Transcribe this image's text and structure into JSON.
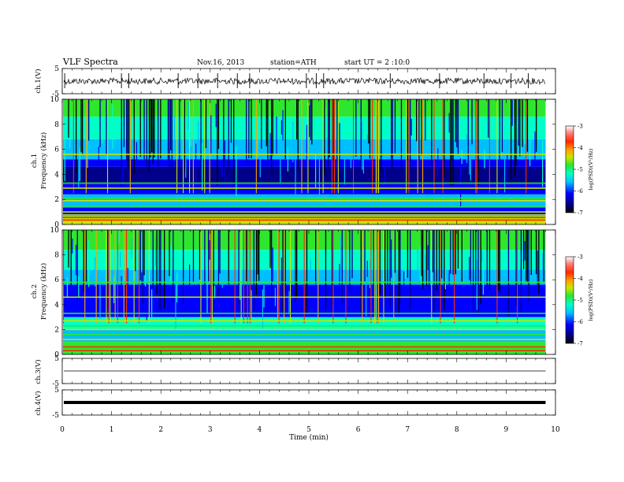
{
  "header": {
    "title": "VLF  Spectra",
    "date": "Nov.16, 2013",
    "station": "station=ATH",
    "start": "start  UT  =   2  :10:0"
  },
  "colors": {
    "colormap": [
      "#000000",
      "#00008b",
      "#0000ff",
      "#00bfff",
      "#00ffc8",
      "#2ee62e",
      "#c8e600",
      "#ffa500",
      "#ff2a00",
      "#ff7f7f",
      "#ffffff"
    ],
    "trace": "#000000",
    "axis": "#000000"
  },
  "chart_data": [
    {
      "type": "line",
      "name": "ch1-waveform",
      "ylabel": "ch.1(V)",
      "ylim": [
        -5,
        5
      ],
      "yticks": [
        "5",
        "-5"
      ],
      "xlim": [
        0,
        10
      ],
      "description_level_V": 0,
      "spike_times_min": [
        0.05,
        1.2,
        1.35,
        2.35,
        2.75,
        3.15,
        3.55,
        3.8,
        4.95,
        5.15,
        5.3,
        6.65,
        7.65,
        8.55,
        9.1,
        9.45
      ]
    },
    {
      "type": "heatmap",
      "name": "ch1-spectrogram",
      "ylabel": "Frequency (kHz)",
      "ylabel_channel": "ch.1",
      "ylim": [
        0,
        10
      ],
      "yticks": [
        "0",
        "2",
        "4",
        "6",
        "8",
        "10"
      ],
      "xlim": [
        0,
        10
      ],
      "data_end_min": 9.8,
      "colorbar": {
        "label": "log(PSD)(V²/Hz)",
        "range": [
          -7,
          -3
        ],
        "ticks": [
          "-7",
          "-6",
          "-5",
          "-4",
          "-3"
        ]
      }
    },
    {
      "type": "heatmap",
      "name": "ch2-spectrogram",
      "ylabel": "Frequency (kHz)",
      "ylabel_channel": "ch.2",
      "ylim": [
        0,
        10
      ],
      "yticks": [
        "0",
        "2",
        "4",
        "6",
        "8",
        "10"
      ],
      "xlim": [
        0,
        10
      ],
      "data_end_min": 9.8,
      "colorbar": {
        "label": "log(PSD)(V²/Hz)",
        "range": [
          -7,
          -3
        ],
        "ticks": [
          "-7",
          "-6",
          "-5",
          "-4",
          "-3"
        ]
      }
    },
    {
      "type": "line",
      "name": "ch3-waveform",
      "ylabel": "ch.3(V)",
      "ylim": [
        -5,
        5
      ],
      "yticks": [
        "5",
        "-5"
      ],
      "xlim": [
        0,
        10
      ],
      "level_V": 0
    },
    {
      "type": "line",
      "name": "ch4-waveform",
      "ylabel": "ch.4(V)",
      "ylim": [
        -5,
        5
      ],
      "yticks": [
        "5",
        "-5"
      ],
      "xlim": [
        0,
        10
      ],
      "level_V": 0
    }
  ],
  "xaxis": {
    "label": "Time  (min)",
    "ticks": [
      "0",
      "1",
      "2",
      "3",
      "4",
      "5",
      "6",
      "7",
      "8",
      "9",
      "10"
    ],
    "range": [
      0,
      10
    ]
  }
}
